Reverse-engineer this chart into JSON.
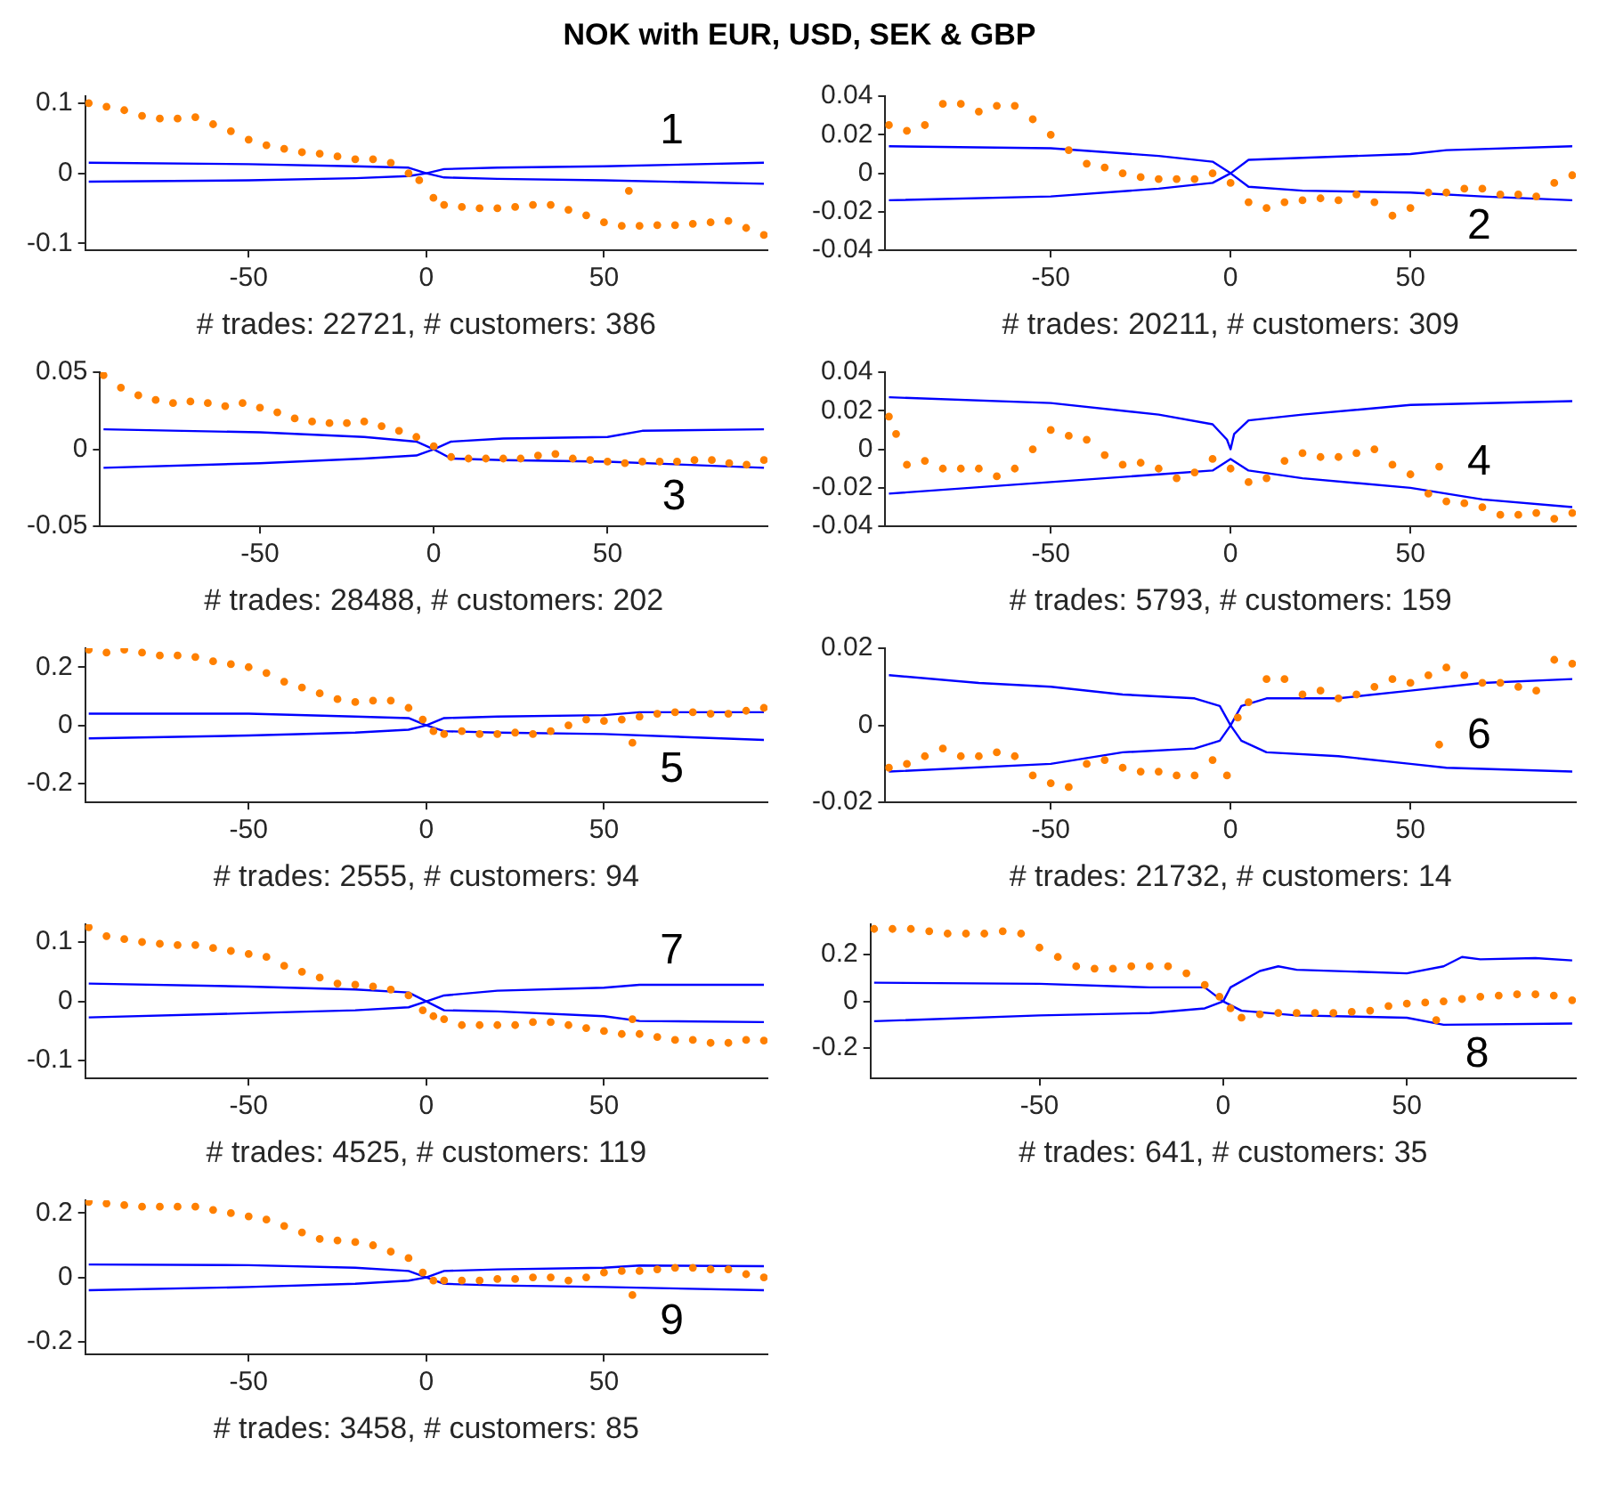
{
  "chart_data": [
    {
      "type": "scatter",
      "title": "NOK with EUR, USD, SEK & GBP",
      "xlabel": "# trades: 22721, # customers: 386",
      "annotations": [
        "1"
      ],
      "xlim": [
        -96,
        96
      ],
      "xticks": [
        -50,
        0,
        50
      ],
      "ylim": [
        -0.11,
        0.11
      ],
      "yticks": [
        -0.1,
        0,
        0.1
      ],
      "series": [
        {
          "marker": "circle",
          "color": "#ff8000",
          "x": [
            -95,
            -90,
            -85,
            -80,
            -75,
            -70,
            -65,
            -60,
            -55,
            -50,
            -45,
            -40,
            -35,
            -30,
            -25,
            -20,
            -15,
            -10,
            -5,
            -2,
            2,
            5,
            10,
            15,
            20,
            25,
            30,
            35,
            40,
            45,
            50,
            55,
            57,
            60,
            65,
            70,
            75,
            80,
            85,
            90,
            95
          ],
          "values": [
            0.1,
            0.095,
            0.09,
            0.082,
            0.078,
            0.078,
            0.08,
            0.07,
            0.06,
            0.048,
            0.04,
            0.035,
            0.03,
            0.028,
            0.024,
            0.02,
            0.02,
            0.015,
            0.0,
            -0.01,
            -0.035,
            -0.045,
            -0.048,
            -0.05,
            -0.05,
            -0.048,
            -0.045,
            -0.045,
            -0.052,
            -0.06,
            -0.07,
            -0.075,
            -0.025,
            -0.075,
            -0.074,
            -0.074,
            -0.072,
            -0.07,
            -0.068,
            -0.078,
            -0.088
          ]
        },
        {
          "type": "line",
          "marker": "none",
          "color": "#0000ff",
          "x": [
            -95,
            -50,
            -20,
            -5,
            0,
            5,
            20,
            50,
            95
          ],
          "values": [
            0.015,
            0.013,
            0.01,
            0.008,
            0,
            0.006,
            0.008,
            0.01,
            0.015
          ]
        },
        {
          "type": "line",
          "marker": "none",
          "color": "#0000ff",
          "x": [
            -95,
            -50,
            -20,
            -5,
            0,
            5,
            20,
            50,
            95
          ],
          "values": [
            -0.012,
            -0.01,
            -0.007,
            -0.004,
            0,
            -0.006,
            -0.008,
            -0.01,
            -0.015
          ]
        }
      ]
    },
    {
      "type": "scatter",
      "xlabel": "# trades: 20211, # customers: 309",
      "annotations": [
        "2"
      ],
      "xlim": [
        -96,
        96
      ],
      "xticks": [
        -50,
        0,
        50
      ],
      "ylim": [
        -0.04,
        0.04
      ],
      "yticks": [
        -0.04,
        -0.02,
        0,
        0.02,
        0.04
      ],
      "series": [
        {
          "marker": "circle",
          "color": "#ff8000",
          "x": [
            -95,
            -90,
            -85,
            -80,
            -75,
            -70,
            -65,
            -60,
            -55,
            -50,
            -45,
            -40,
            -35,
            -30,
            -25,
            -20,
            -15,
            -10,
            -5,
            0,
            5,
            10,
            15,
            20,
            25,
            30,
            35,
            40,
            45,
            50,
            55,
            60,
            65,
            70,
            75,
            80,
            85,
            90,
            95
          ],
          "values": [
            0.025,
            0.022,
            0.025,
            0.036,
            0.036,
            0.032,
            0.035,
            0.035,
            0.028,
            0.02,
            0.012,
            0.005,
            0.003,
            0.0,
            -0.002,
            -0.003,
            -0.003,
            -0.003,
            0.0,
            -0.005,
            -0.015,
            -0.018,
            -0.015,
            -0.014,
            -0.013,
            -0.014,
            -0.011,
            -0.015,
            -0.022,
            -0.018,
            -0.01,
            -0.01,
            -0.008,
            -0.008,
            -0.011,
            -0.011,
            -0.012,
            -0.005,
            -0.001
          ]
        },
        {
          "type": "line",
          "marker": "none",
          "color": "#0000ff",
          "x": [
            -95,
            -50,
            -20,
            -5,
            0,
            5,
            20,
            50,
            60,
            95
          ],
          "values": [
            0.014,
            0.013,
            0.009,
            0.006,
            0,
            0.007,
            0.008,
            0.01,
            0.012,
            0.014
          ]
        },
        {
          "type": "line",
          "marker": "none",
          "color": "#0000ff",
          "x": [
            -95,
            -50,
            -20,
            -5,
            0,
            5,
            20,
            50,
            70,
            95
          ],
          "values": [
            -0.014,
            -0.012,
            -0.008,
            -0.005,
            0,
            -0.007,
            -0.009,
            -0.01,
            -0.012,
            -0.014
          ]
        }
      ]
    },
    {
      "type": "scatter",
      "xlabel": "# trades: 28488, # customers: 202",
      "annotations": [
        "3"
      ],
      "xlim": [
        -96,
        96
      ],
      "xticks": [
        -50,
        0,
        50
      ],
      "ylim": [
        -0.05,
        0.05
      ],
      "yticks": [
        -0.05,
        0,
        0.05
      ],
      "series": [
        {
          "marker": "circle",
          "color": "#ff8000",
          "x": [
            -95,
            -90,
            -85,
            -80,
            -75,
            -70,
            -65,
            -60,
            -55,
            -50,
            -45,
            -40,
            -35,
            -30,
            -25,
            -20,
            -15,
            -10,
            -5,
            0,
            5,
            10,
            15,
            20,
            25,
            30,
            35,
            40,
            45,
            50,
            55,
            60,
            65,
            70,
            75,
            80,
            85,
            90,
            95
          ],
          "values": [
            0.048,
            0.04,
            0.035,
            0.032,
            0.03,
            0.031,
            0.03,
            0.028,
            0.03,
            0.027,
            0.024,
            0.02,
            0.018,
            0.017,
            0.017,
            0.018,
            0.015,
            0.012,
            0.008,
            0.002,
            -0.005,
            -0.006,
            -0.006,
            -0.006,
            -0.006,
            -0.004,
            -0.003,
            -0.006,
            -0.007,
            -0.008,
            -0.009,
            -0.008,
            -0.008,
            -0.008,
            -0.007,
            -0.007,
            -0.009,
            -0.01,
            -0.007
          ]
        },
        {
          "type": "line",
          "marker": "none",
          "color": "#0000ff",
          "x": [
            -95,
            -50,
            -20,
            -5,
            0,
            5,
            20,
            50,
            60,
            95
          ],
          "values": [
            0.013,
            0.011,
            0.008,
            0.005,
            0,
            0.005,
            0.007,
            0.008,
            0.012,
            0.013
          ]
        },
        {
          "type": "line",
          "marker": "none",
          "color": "#0000ff",
          "x": [
            -95,
            -50,
            -20,
            -5,
            0,
            5,
            20,
            50,
            95
          ],
          "values": [
            -0.012,
            -0.009,
            -0.006,
            -0.004,
            0,
            -0.006,
            -0.007,
            -0.008,
            -0.012
          ]
        }
      ]
    },
    {
      "type": "scatter",
      "xlabel": "# trades: 5793, # customers: 159",
      "annotations": [
        "4"
      ],
      "xlim": [
        -96,
        96
      ],
      "xticks": [
        -50,
        0,
        50
      ],
      "ylim": [
        -0.04,
        0.04
      ],
      "yticks": [
        -0.04,
        -0.02,
        0,
        0.02,
        0.04
      ],
      "series": [
        {
          "marker": "circle",
          "color": "#ff8000",
          "x": [
            -95,
            -93,
            -90,
            -85,
            -80,
            -75,
            -70,
            -65,
            -60,
            -55,
            -50,
            -45,
            -40,
            -35,
            -30,
            -25,
            -20,
            -15,
            -10,
            -5,
            0,
            5,
            10,
            15,
            20,
            25,
            30,
            35,
            40,
            45,
            50,
            55,
            58,
            60,
            65,
            70,
            75,
            80,
            85,
            90,
            95
          ],
          "values": [
            0.017,
            0.008,
            -0.008,
            -0.006,
            -0.01,
            -0.01,
            -0.01,
            -0.014,
            -0.01,
            0.0,
            0.01,
            0.007,
            0.005,
            -0.003,
            -0.008,
            -0.007,
            -0.01,
            -0.015,
            -0.012,
            -0.005,
            -0.01,
            -0.017,
            -0.015,
            -0.006,
            -0.002,
            -0.004,
            -0.004,
            -0.002,
            0.0,
            -0.008,
            -0.013,
            -0.023,
            -0.009,
            -0.027,
            -0.028,
            -0.03,
            -0.034,
            -0.034,
            -0.033,
            -0.036,
            -0.033
          ]
        },
        {
          "type": "line",
          "marker": "none",
          "color": "#0000ff",
          "x": [
            -95,
            -50,
            -20,
            -5,
            -1,
            0,
            1,
            5,
            20,
            50,
            95
          ],
          "values": [
            0.027,
            0.024,
            0.018,
            0.013,
            0.005,
            0,
            0.008,
            0.015,
            0.018,
            0.023,
            0.025
          ]
        },
        {
          "type": "line",
          "marker": "none",
          "color": "#0000ff",
          "x": [
            -95,
            -50,
            -20,
            -5,
            0,
            5,
            20,
            50,
            70,
            95
          ],
          "values": [
            -0.023,
            -0.017,
            -0.013,
            -0.011,
            -0.005,
            -0.011,
            -0.015,
            -0.02,
            -0.026,
            -0.03
          ]
        }
      ]
    },
    {
      "type": "scatter",
      "xlabel": "# trades: 2555, # customers: 94",
      "annotations": [
        "5"
      ],
      "xlim": [
        -96,
        96
      ],
      "xticks": [
        -50,
        0,
        50
      ],
      "ylim": [
        -0.265,
        0.265
      ],
      "yticks": [
        -0.2,
        0,
        0.2
      ],
      "series": [
        {
          "marker": "circle",
          "color": "#ff8000",
          "x": [
            -95,
            -90,
            -85,
            -80,
            -75,
            -70,
            -65,
            -60,
            -55,
            -50,
            -45,
            -40,
            -35,
            -30,
            -25,
            -20,
            -15,
            -10,
            -5,
            -1,
            2,
            5,
            10,
            15,
            20,
            25,
            30,
            35,
            40,
            45,
            50,
            55,
            58,
            60,
            65,
            70,
            75,
            80,
            85,
            90,
            95
          ],
          "values": [
            0.26,
            0.25,
            0.26,
            0.25,
            0.24,
            0.24,
            0.235,
            0.22,
            0.21,
            0.2,
            0.18,
            0.15,
            0.13,
            0.11,
            0.09,
            0.08,
            0.085,
            0.085,
            0.06,
            0.02,
            -0.02,
            -0.03,
            -0.02,
            -0.03,
            -0.03,
            -0.025,
            -0.03,
            -0.02,
            0.0,
            0.02,
            0.015,
            0.02,
            -0.06,
            0.03,
            0.04,
            0.045,
            0.045,
            0.04,
            0.04,
            0.05,
            0.06
          ]
        },
        {
          "type": "line",
          "marker": "none",
          "color": "#0000ff",
          "x": [
            -95,
            -50,
            -20,
            -5,
            0,
            5,
            20,
            50,
            60,
            95
          ],
          "values": [
            0.04,
            0.04,
            0.03,
            0.025,
            0,
            0.025,
            0.03,
            0.035,
            0.045,
            0.045
          ]
        },
        {
          "type": "line",
          "marker": "none",
          "color": "#0000ff",
          "x": [
            -95,
            -50,
            -20,
            -5,
            0,
            5,
            20,
            50,
            95
          ],
          "values": [
            -0.045,
            -0.035,
            -0.025,
            -0.015,
            0,
            -0.02,
            -0.025,
            -0.03,
            -0.05
          ]
        }
      ]
    },
    {
      "type": "scatter",
      "xlabel": "# trades: 21732, # customers: 14",
      "annotations": [
        "6"
      ],
      "xlim": [
        -96,
        96
      ],
      "xticks": [
        -50,
        0,
        50
      ],
      "ylim": [
        -0.02,
        0.02
      ],
      "yticks": [
        -0.02,
        0,
        0.02
      ],
      "series": [
        {
          "marker": "circle",
          "color": "#ff8000",
          "x": [
            -95,
            -90,
            -85,
            -80,
            -75,
            -70,
            -65,
            -60,
            -55,
            -50,
            -45,
            -40,
            -35,
            -30,
            -25,
            -20,
            -15,
            -10,
            -5,
            -1,
            2,
            5,
            10,
            15,
            20,
            25,
            30,
            35,
            40,
            45,
            50,
            55,
            58,
            60,
            65,
            70,
            75,
            80,
            85,
            90,
            95
          ],
          "values": [
            -0.011,
            -0.01,
            -0.008,
            -0.006,
            -0.008,
            -0.008,
            -0.007,
            -0.008,
            -0.013,
            -0.015,
            -0.016,
            -0.01,
            -0.009,
            -0.011,
            -0.012,
            -0.012,
            -0.013,
            -0.013,
            -0.009,
            -0.013,
            0.002,
            0.006,
            0.012,
            0.012,
            0.008,
            0.009,
            0.007,
            0.008,
            0.01,
            0.012,
            0.011,
            0.013,
            -0.005,
            0.015,
            0.013,
            0.011,
            0.011,
            0.01,
            0.009,
            0.017,
            0.016
          ]
        },
        {
          "type": "line",
          "marker": "none",
          "color": "#0000ff",
          "x": [
            -95,
            -70,
            -50,
            -30,
            -10,
            -3,
            0,
            3,
            10,
            30,
            50,
            70,
            95
          ],
          "values": [
            0.013,
            0.011,
            0.01,
            0.008,
            0.007,
            0.005,
            0,
            0.005,
            0.007,
            0.007,
            0.009,
            0.011,
            0.012
          ]
        },
        {
          "type": "line",
          "marker": "none",
          "color": "#0000ff",
          "x": [
            -95,
            -50,
            -30,
            -10,
            -3,
            0,
            3,
            10,
            30,
            50,
            60,
            95
          ],
          "values": [
            -0.012,
            -0.01,
            -0.007,
            -0.006,
            -0.004,
            0,
            -0.004,
            -0.007,
            -0.008,
            -0.01,
            -0.011,
            -0.012
          ]
        }
      ]
    },
    {
      "type": "scatter",
      "xlabel": "# trades: 4525, # customers: 119",
      "annotations": [
        "7"
      ],
      "xlim": [
        -96,
        96
      ],
      "xticks": [
        -50,
        0,
        50
      ],
      "ylim": [
        -0.13,
        0.13
      ],
      "yticks": [
        -0.1,
        0,
        0.1
      ],
      "series": [
        {
          "marker": "circle",
          "color": "#ff8000",
          "x": [
            -95,
            -90,
            -85,
            -80,
            -75,
            -70,
            -65,
            -60,
            -55,
            -50,
            -45,
            -40,
            -35,
            -30,
            -25,
            -20,
            -15,
            -10,
            -5,
            -1,
            2,
            5,
            10,
            15,
            20,
            25,
            30,
            35,
            40,
            45,
            50,
            55,
            58,
            60,
            65,
            70,
            75,
            80,
            85,
            90,
            95
          ],
          "values": [
            0.125,
            0.11,
            0.105,
            0.1,
            0.097,
            0.095,
            0.095,
            0.09,
            0.085,
            0.08,
            0.075,
            0.06,
            0.05,
            0.04,
            0.03,
            0.028,
            0.025,
            0.02,
            0.01,
            -0.015,
            -0.025,
            -0.03,
            -0.04,
            -0.04,
            -0.04,
            -0.04,
            -0.035,
            -0.035,
            -0.04,
            -0.045,
            -0.05,
            -0.055,
            -0.03,
            -0.055,
            -0.06,
            -0.065,
            -0.065,
            -0.07,
            -0.07,
            -0.065,
            -0.066
          ]
        },
        {
          "type": "line",
          "marker": "none",
          "color": "#0000ff",
          "x": [
            -95,
            -50,
            -20,
            -5,
            0,
            5,
            20,
            50,
            60,
            95
          ],
          "values": [
            0.03,
            0.025,
            0.02,
            0.015,
            0,
            0.01,
            0.018,
            0.023,
            0.028,
            0.028
          ]
        },
        {
          "type": "line",
          "marker": "none",
          "color": "#0000ff",
          "x": [
            -95,
            -50,
            -20,
            -5,
            0,
            5,
            20,
            50,
            60,
            95
          ],
          "values": [
            -0.027,
            -0.02,
            -0.015,
            -0.01,
            0,
            -0.015,
            -0.017,
            -0.025,
            -0.033,
            -0.035
          ]
        }
      ]
    },
    {
      "type": "scatter",
      "xlabel": "# trades: 641, # customers: 35",
      "annotations": [
        "8"
      ],
      "xlim": [
        -96,
        96
      ],
      "xticks": [
        -50,
        0,
        50
      ],
      "ylim": [
        -0.33,
        0.33
      ],
      "yticks": [
        -0.2,
        0,
        0.2
      ],
      "series": [
        {
          "marker": "circle",
          "color": "#ff8000",
          "x": [
            -95,
            -90,
            -85,
            -80,
            -75,
            -70,
            -65,
            -60,
            -55,
            -50,
            -45,
            -40,
            -35,
            -30,
            -25,
            -20,
            -15,
            -10,
            -5,
            -1,
            2,
            5,
            10,
            15,
            20,
            25,
            30,
            35,
            40,
            45,
            50,
            55,
            58,
            60,
            65,
            70,
            75,
            80,
            85,
            90,
            95
          ],
          "values": [
            0.31,
            0.31,
            0.31,
            0.3,
            0.29,
            0.29,
            0.29,
            0.3,
            0.29,
            0.23,
            0.19,
            0.15,
            0.14,
            0.14,
            0.15,
            0.15,
            0.15,
            0.12,
            0.07,
            0.02,
            -0.03,
            -0.07,
            -0.055,
            -0.05,
            -0.05,
            -0.05,
            -0.05,
            -0.045,
            -0.04,
            -0.02,
            -0.01,
            -0.005,
            -0.08,
            0.0,
            0.01,
            0.02,
            0.025,
            0.03,
            0.03,
            0.025,
            0.005
          ]
        },
        {
          "type": "line",
          "marker": "none",
          "color": "#0000ff",
          "x": [
            -95,
            -50,
            -20,
            -5,
            0,
            2,
            10,
            15,
            20,
            50,
            60,
            65,
            70,
            85,
            95
          ],
          "values": [
            0.08,
            0.075,
            0.06,
            0.06,
            0,
            0.06,
            0.13,
            0.15,
            0.135,
            0.12,
            0.15,
            0.19,
            0.18,
            0.185,
            0.175
          ]
        },
        {
          "type": "line",
          "marker": "none",
          "color": "#0000ff",
          "x": [
            -95,
            -50,
            -20,
            -5,
            0,
            5,
            20,
            50,
            60,
            95
          ],
          "values": [
            -0.085,
            -0.06,
            -0.05,
            -0.03,
            0,
            -0.04,
            -0.06,
            -0.07,
            -0.1,
            -0.095
          ]
        }
      ]
    },
    {
      "type": "scatter",
      "xlabel": "# trades: 3458, # customers: 85",
      "annotations": [
        "9"
      ],
      "xlim": [
        -96,
        96
      ],
      "xticks": [
        -50,
        0,
        50
      ],
      "ylim": [
        -0.24,
        0.24
      ],
      "yticks": [
        -0.2,
        0,
        0.2
      ],
      "series": [
        {
          "marker": "circle",
          "color": "#ff8000",
          "x": [
            -95,
            -90,
            -85,
            -80,
            -75,
            -70,
            -65,
            -60,
            -55,
            -50,
            -45,
            -40,
            -35,
            -30,
            -25,
            -20,
            -15,
            -10,
            -5,
            -1,
            2,
            5,
            10,
            15,
            20,
            25,
            30,
            35,
            40,
            45,
            50,
            55,
            58,
            60,
            65,
            70,
            75,
            80,
            85,
            90,
            95
          ],
          "values": [
            0.235,
            0.23,
            0.225,
            0.22,
            0.22,
            0.22,
            0.22,
            0.21,
            0.2,
            0.19,
            0.18,
            0.16,
            0.14,
            0.12,
            0.115,
            0.11,
            0.1,
            0.08,
            0.06,
            0.015,
            -0.01,
            -0.01,
            -0.01,
            -0.01,
            -0.005,
            -0.005,
            0.0,
            0.0,
            -0.01,
            0.0,
            0.015,
            0.02,
            -0.055,
            0.02,
            0.025,
            0.03,
            0.03,
            0.025,
            0.025,
            0.01,
            0.0
          ]
        },
        {
          "type": "line",
          "marker": "none",
          "color": "#0000ff",
          "x": [
            -95,
            -50,
            -20,
            -5,
            0,
            5,
            20,
            50,
            60,
            95
          ],
          "values": [
            0.04,
            0.038,
            0.03,
            0.02,
            0,
            0.02,
            0.025,
            0.03,
            0.037,
            0.035
          ]
        },
        {
          "type": "line",
          "marker": "none",
          "color": "#0000ff",
          "x": [
            -95,
            -50,
            -20,
            -5,
            0,
            5,
            20,
            50,
            95
          ],
          "values": [
            -0.04,
            -0.03,
            -0.02,
            -0.01,
            0,
            -0.02,
            -0.025,
            -0.03,
            -0.04
          ]
        }
      ]
    }
  ]
}
